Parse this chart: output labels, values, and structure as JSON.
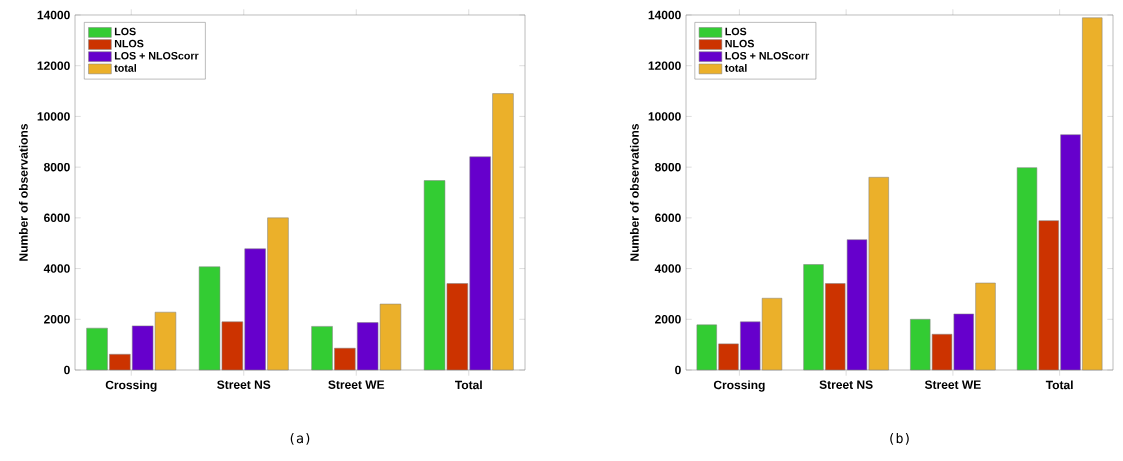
{
  "chart_data": [
    {
      "type": "bar",
      "ylabel": "Number of observations",
      "categories": [
        "Crossing",
        "Street NS",
        "Street WE",
        "Total"
      ],
      "ylim": [
        0,
        14000
      ],
      "yticks": [
        0,
        2000,
        4000,
        6000,
        8000,
        10000,
        12000,
        14000
      ],
      "legend": "top left",
      "annotations": [
        "(a)"
      ],
      "series": [
        {
          "name": "LOS",
          "color": "#33cc33",
          "values": [
            1650,
            4070,
            1720,
            7470
          ]
        },
        {
          "name": "NLOS",
          "color": "#cc3300",
          "values": [
            620,
            1900,
            860,
            3410
          ]
        },
        {
          "name": "LOS + NLOScorr",
          "color": "#6600cc",
          "values": [
            1740,
            4780,
            1870,
            8410
          ]
        },
        {
          "name": "total",
          "color": "#ebb02a",
          "values": [
            2280,
            6000,
            2600,
            10900
          ]
        }
      ]
    },
    {
      "type": "bar",
      "ylabel": "Number of observations",
      "categories": [
        "Crossing",
        "Street NS",
        "Street WE",
        "Total"
      ],
      "ylim": [
        0,
        14000
      ],
      "yticks": [
        0,
        2000,
        4000,
        6000,
        8000,
        10000,
        12000,
        14000
      ],
      "legend": "top left",
      "annotations": [
        "(b)"
      ],
      "series": [
        {
          "name": "LOS",
          "color": "#33cc33",
          "values": [
            1780,
            4160,
            2000,
            7980
          ]
        },
        {
          "name": "NLOS",
          "color": "#cc3300",
          "values": [
            1030,
            3410,
            1410,
            5890
          ]
        },
        {
          "name": "LOS + NLOScorr",
          "color": "#6600cc",
          "values": [
            1900,
            5140,
            2210,
            9280
          ]
        },
        {
          "name": "total",
          "color": "#ebb02a",
          "values": [
            2830,
            7600,
            3430,
            13890
          ]
        }
      ]
    }
  ]
}
